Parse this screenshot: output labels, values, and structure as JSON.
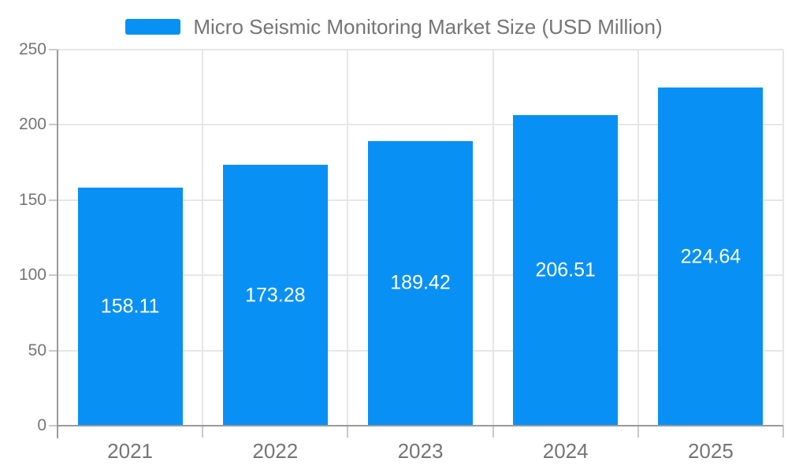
{
  "legend": {
    "label": "Micro Seismic Monitoring Market Size (USD Million)"
  },
  "colors": {
    "bar": "#0990F5",
    "axis_text": "#757575",
    "grid": "#E6E6E6",
    "axis_line": "#9A9A9A",
    "tick": "#C9C9C9",
    "value_text": "#FFFFFF",
    "background": "#FFFFFF"
  },
  "chart_data": {
    "type": "bar",
    "title": "Micro Seismic Monitoring Market Size (USD Million)",
    "categories": [
      "2021",
      "2022",
      "2023",
      "2024",
      "2025"
    ],
    "values": [
      158.11,
      173.28,
      189.42,
      206.51,
      224.64
    ],
    "value_labels": [
      "158.11",
      "173.28",
      "189.42",
      "206.51",
      "224.64"
    ],
    "series": [
      {
        "name": "Micro Seismic Monitoring Market Size (USD Million)",
        "values": [
          158.11,
          173.28,
          189.42,
          206.51,
          224.64
        ]
      }
    ],
    "xlabel": "",
    "ylabel": "",
    "ylim": [
      0,
      250
    ],
    "yticks": [
      0,
      50,
      100,
      150,
      200,
      250
    ],
    "grid": true,
    "legend_position": "top",
    "value_label_position": "inside-center"
  }
}
